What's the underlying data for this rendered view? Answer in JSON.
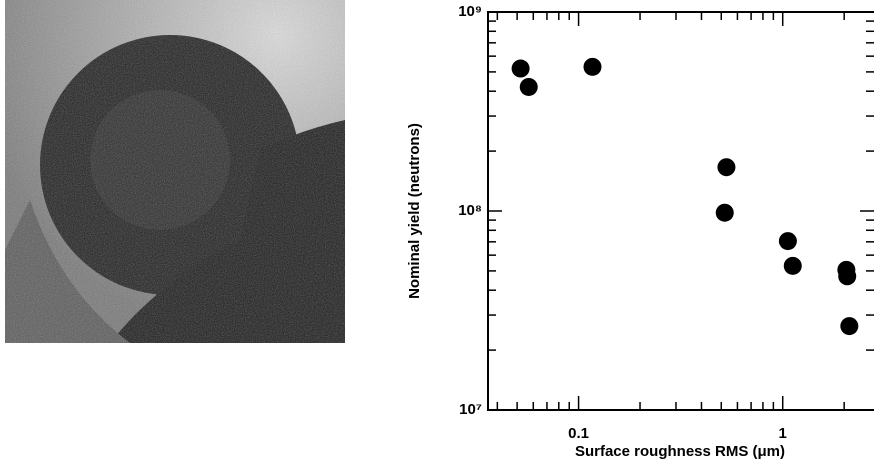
{
  "chart_data": {
    "type": "scatter",
    "xlabel": "Surface roughness RMS (μm)",
    "ylabel": "Nominal yield (neutrons)",
    "x_log": true,
    "y_log": true,
    "color": "#000000",
    "xlim": [
      0.036,
      2.8
    ],
    "ylim": [
      10000000,
      1000000000
    ],
    "xticks": [
      0.1,
      1
    ],
    "x_minor_ticks": [
      0.04,
      0.05,
      0.06,
      0.07,
      0.08,
      0.09,
      0.2,
      0.3,
      0.4,
      0.5,
      0.6,
      0.7,
      0.8,
      0.9,
      2
    ],
    "yticks": [
      {
        "value": 10000000,
        "label": "10⁷"
      },
      {
        "value": 100000000,
        "label": "10⁸"
      },
      {
        "value": 1000000000,
        "label": "10⁹"
      }
    ],
    "y_minor_ticks": [
      20000000,
      30000000,
      40000000,
      50000000,
      60000000,
      70000000,
      80000000,
      90000000,
      200000000,
      300000000,
      400000000,
      500000000,
      600000000,
      700000000,
      800000000,
      900000000
    ],
    "x": [
      0.052,
      0.057,
      0.117,
      0.53,
      0.52,
      1.06,
      1.12,
      2.05,
      2.07,
      2.12
    ],
    "values": [
      520000000,
      420000000,
      530000000,
      166000000,
      98000000,
      70600000,
      53000000,
      50600000,
      47000000,
      26400000
    ]
  }
}
